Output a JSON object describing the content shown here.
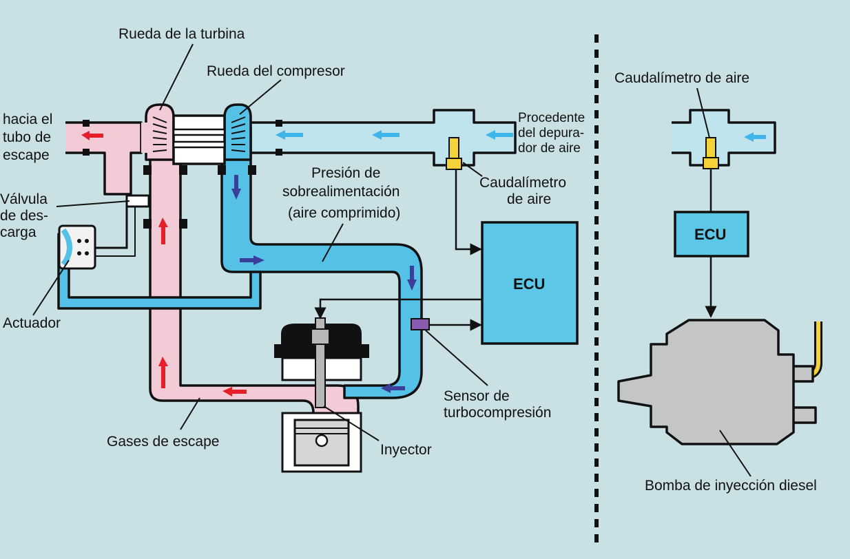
{
  "labels": {
    "turbine_wheel": "Rueda de la turbina",
    "compressor_wheel": "Rueda del compresor",
    "to_exhaust_line1": "hacia el",
    "to_exhaust_line2": "tubo de",
    "to_exhaust_line3": "escape",
    "from_filter_line1": "Procedente",
    "from_filter_line2": "del depura-",
    "from_filter_line3": "dor de aire",
    "boost_line1": "Presión de",
    "boost_line2": "sobrealimentación",
    "boost_line3": "(aire comprimido)",
    "mass_air_flow_line1": "Caudalímetro",
    "mass_air_flow_line2": "de aire",
    "wastegate_line1": "Válvula",
    "wastegate_line2": "de des-",
    "wastegate_line3": "carga",
    "actuator": "Actuador",
    "ecu_main": "ECU",
    "boost_sensor_line1": "Sensor de",
    "boost_sensor_line2": "turbocompresión",
    "exhaust_gases": "Gases de escape",
    "injector": "Inyector",
    "right_mass_air_flow": "Caudalímetro de aire",
    "ecu_right": "ECU",
    "injection_pump": "Bomba de inyección diesel"
  },
  "colors": {
    "background": "#c9e1e5",
    "exhaust_pink": "#f3cbd6",
    "boost_blue": "#56c1e6",
    "intake_light_blue": "#bfe4ee",
    "arrow_red": "#e5202a",
    "arrow_light_blue": "#3fb6ea",
    "arrow_dark_blue": "#3b3f9b",
    "sensor_yellow": "#f5d23a",
    "sensor_purple": "#8a5cb0",
    "ecu_fill": "#5cc7e6",
    "pump_gray": "#c3c5c7"
  }
}
